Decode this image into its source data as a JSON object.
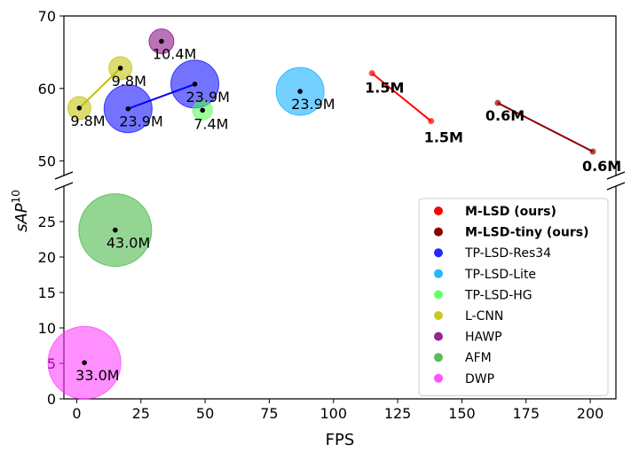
{
  "chart_data": {
    "type": "scatter",
    "xlabel": "FPS",
    "ylabel": "sAP",
    "ylabel_superscript": "10",
    "xlim": [
      -5,
      210
    ],
    "ylim_upper": [
      48,
      70
    ],
    "ylim_lower": [
      0,
      30
    ],
    "xticks": [
      "0",
      "25",
      "50",
      "75",
      "100",
      "125",
      "150",
      "175",
      "200"
    ],
    "yticks_upper": [
      "50",
      "60",
      "70"
    ],
    "yticks_lower": [
      "0",
      "5",
      "10",
      "15",
      "20",
      "25"
    ],
    "series": [
      {
        "name": "M-LSD (ours)",
        "bold": true,
        "color": "#ff0000",
        "connected": true,
        "points": [
          {
            "fps": 115,
            "sap": 62.1,
            "params": "1.5M",
            "label_dx": -8,
            "label_dy": 22
          },
          {
            "fps": 138,
            "sap": 55.5,
            "params": "1.5M",
            "label_dx": -8,
            "label_dy": 24
          }
        ]
      },
      {
        "name": "M-LSD-tiny (ours)",
        "bold": true,
        "color": "#8b0000",
        "connected": true,
        "points": [
          {
            "fps": 164,
            "sap": 58.0,
            "params": "0.6M",
            "label_dx": -14,
            "label_dy": 20
          },
          {
            "fps": 201,
            "sap": 51.3,
            "params": "0.6M",
            "label_dx": -12,
            "label_dy": 22
          }
        ]
      },
      {
        "name": "TP-LSD-Res34",
        "bold": false,
        "color": "#0000ff",
        "connected": true,
        "points": [
          {
            "fps": 20,
            "sap": 57.2,
            "params": "23.9M",
            "radius": 27,
            "label_dx": -10,
            "label_dy": 20
          },
          {
            "fps": 46,
            "sap": 60.6,
            "params": "23.9M",
            "radius": 27,
            "label_dx": -10,
            "label_dy": 20
          }
        ]
      },
      {
        "name": "TP-LSD-Lite",
        "bold": false,
        "color": "#00aaff",
        "connected": false,
        "points": [
          {
            "fps": 87,
            "sap": 59.6,
            "params": "23.9M",
            "radius": 27,
            "label_dx": -10,
            "label_dy": 20
          }
        ]
      },
      {
        "name": "TP-LSD-HG",
        "bold": false,
        "color": "#4cff4c",
        "connected": false,
        "points": [
          {
            "fps": 49,
            "sap": 57.0,
            "params": "7.4M",
            "radius": 11,
            "label_dx": -10,
            "label_dy": 21
          }
        ]
      },
      {
        "name": "L-CNN",
        "bold": false,
        "color": "#bfbf00",
        "connected": true,
        "points": [
          {
            "fps": 1,
            "sap": 57.3,
            "params": "9.8M",
            "radius": 13,
            "label_dx": -10,
            "label_dy": 20
          },
          {
            "fps": 17,
            "sap": 62.8,
            "params": "9.8M",
            "radius": 13,
            "label_dx": -10,
            "label_dy": 20
          }
        ]
      },
      {
        "name": "HAWP",
        "bold": false,
        "color": "#800080",
        "connected": false,
        "points": [
          {
            "fps": 33,
            "sap": 66.5,
            "params": "10.4M",
            "radius": 14,
            "label_dx": -10,
            "label_dy": 20
          }
        ]
      },
      {
        "name": "AFM",
        "bold": false,
        "color": "#3cb33c",
        "connected": false,
        "points": [
          {
            "fps": 15,
            "sap": 23.8,
            "params": "43.0M",
            "radius": 41,
            "label_dx": -10,
            "label_dy": 20
          }
        ]
      },
      {
        "name": "DWP",
        "bold": false,
        "color": "#ff33ff",
        "connected": false,
        "points": [
          {
            "fps": 3,
            "sap": 5.1,
            "params": "33.0M",
            "radius": 41,
            "label_dx": -10,
            "label_dy": 20
          }
        ]
      }
    ],
    "legend_position": "lower-right"
  }
}
